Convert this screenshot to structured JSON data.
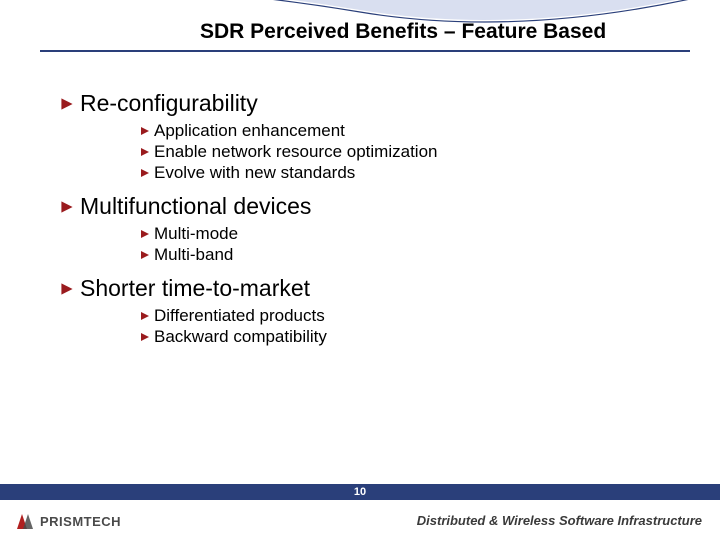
{
  "colors": {
    "rule": "#2a3f7a",
    "bullet": "#9a1b1e",
    "footer_bar": "#2a3f7a",
    "arc_fill": "#d9dff0",
    "arc_stroke": "#2a3f7a",
    "logo_dark": "#4a4a4a",
    "logo_red": "#b02020",
    "tagline": "#3a3a3a"
  },
  "fontsizes": {
    "title": 21,
    "lvl1": 23,
    "lvl2": 17,
    "page_num": 11,
    "logo_text": 13,
    "tagline": 13
  },
  "title": "SDR Perceived Benefits – Feature Based",
  "sections": [
    {
      "heading": "Re-configurability",
      "items": [
        "Application enhancement",
        "Enable network resource optimization",
        "Evolve with new standards"
      ]
    },
    {
      "heading": "Multifunctional devices",
      "items": [
        "Multi-mode",
        "Multi-band"
      ]
    },
    {
      "heading": "Shorter time-to-market",
      "items": [
        "Differentiated products",
        "Backward compatibility"
      ]
    }
  ],
  "page_number": "10",
  "logo": {
    "text": "PRISMTECH"
  },
  "tagline": "Distributed & Wireless Software Infrastructure"
}
